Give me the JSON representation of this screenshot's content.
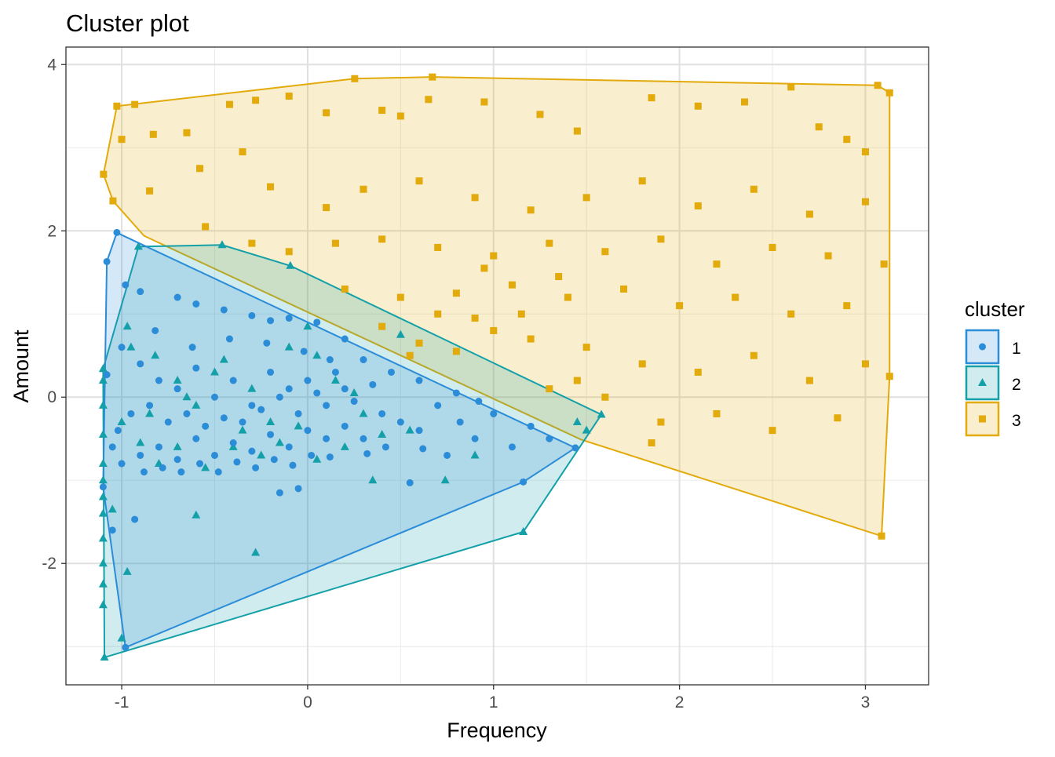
{
  "chart_data": {
    "type": "scatter",
    "title": "Cluster plot",
    "xlabel": "Frequency",
    "ylabel": "Amount",
    "xlim": [
      -1.3,
      3.34
    ],
    "ylim": [
      -3.46,
      4.21
    ],
    "x_ticks": [
      -1,
      0,
      1,
      2,
      3
    ],
    "x_tick_labels": [
      "-1",
      "0",
      "1",
      "2",
      "3"
    ],
    "y_ticks": [
      -2,
      0,
      2,
      4
    ],
    "y_tick_labels": [
      "-2",
      "0",
      "2",
      "4"
    ],
    "grid": true,
    "legend": {
      "title": "cluster",
      "placement": "right"
    },
    "series": [
      {
        "name": "1",
        "shape": "circle",
        "color": "#2B8CD8",
        "hull": [
          [
            -1.026,
            1.98
          ],
          [
            -1.08,
            1.63
          ],
          [
            -1.1,
            -1.08
          ],
          [
            -0.98,
            -3.01
          ],
          [
            1.16,
            -1.02
          ],
          [
            1.44,
            -0.61
          ],
          [
            -1.0,
            1.95
          ]
        ],
        "points": [
          [
            -1.026,
            1.98
          ],
          [
            -1.08,
            1.63
          ],
          [
            -0.98,
            -3.01
          ],
          [
            1.16,
            -1.02
          ],
          [
            1.44,
            -0.61
          ],
          [
            -1.05,
            -1.6
          ],
          [
            -0.93,
            -1.47
          ],
          [
            -1.1,
            -1.08
          ],
          [
            -0.98,
            1.35
          ],
          [
            -0.9,
            1.27
          ],
          [
            -0.7,
            1.2
          ],
          [
            -0.6,
            1.12
          ],
          [
            -0.45,
            1.05
          ],
          [
            -0.3,
            0.98
          ],
          [
            -0.2,
            0.92
          ],
          [
            -0.1,
            0.95
          ],
          [
            0.05,
            0.9
          ],
          [
            0.2,
            0.7
          ],
          [
            0.3,
            0.45
          ],
          [
            0.45,
            0.3
          ],
          [
            0.6,
            0.2
          ],
          [
            0.8,
            0.05
          ],
          [
            1.0,
            -0.2
          ],
          [
            1.2,
            -0.35
          ],
          [
            1.3,
            -0.5
          ],
          [
            -1.0,
            0.6
          ],
          [
            -0.9,
            0.4
          ],
          [
            -0.8,
            0.2
          ],
          [
            -0.7,
            0.1
          ],
          [
            -0.6,
            0.35
          ],
          [
            -0.5,
            0.0
          ],
          [
            -0.4,
            0.2
          ],
          [
            -0.3,
            -0.1
          ],
          [
            -0.2,
            0.3
          ],
          [
            -0.1,
            0.1
          ],
          [
            0.0,
            0.2
          ],
          [
            0.1,
            -0.1
          ],
          [
            0.2,
            0.1
          ],
          [
            0.4,
            -0.2
          ],
          [
            0.5,
            -0.3
          ],
          [
            0.6,
            -0.4
          ],
          [
            0.7,
            -0.1
          ],
          [
            0.9,
            -0.5
          ],
          [
            1.1,
            -0.6
          ],
          [
            -1.05,
            -0.6
          ],
          [
            -1.0,
            -0.8
          ],
          [
            -0.9,
            -0.7
          ],
          [
            -0.8,
            -0.6
          ],
          [
            -0.7,
            -0.75
          ],
          [
            -0.6,
            -0.5
          ],
          [
            -0.5,
            -0.7
          ],
          [
            -0.4,
            -0.55
          ],
          [
            -0.3,
            -0.65
          ],
          [
            -0.2,
            -0.45
          ],
          [
            -0.1,
            -0.6
          ],
          [
            0.0,
            -0.4
          ],
          [
            0.1,
            -0.5
          ],
          [
            0.2,
            -0.35
          ],
          [
            0.3,
            -0.5
          ],
          [
            -0.15,
            -1.15
          ],
          [
            -0.05,
            -1.1
          ],
          [
            0.55,
            -1.03
          ],
          [
            0.75,
            -0.7
          ],
          [
            -0.95,
            -0.2
          ],
          [
            -0.85,
            -0.1
          ],
          [
            -0.75,
            -0.3
          ],
          [
            -0.65,
            -0.2
          ],
          [
            -0.55,
            -0.35
          ],
          [
            -0.45,
            -0.25
          ],
          [
            -0.35,
            -0.3
          ],
          [
            -0.25,
            -0.15
          ],
          [
            -0.15,
            0.0
          ],
          [
            -0.05,
            -0.2
          ],
          [
            0.05,
            0.05
          ],
          [
            0.15,
            0.3
          ],
          [
            0.25,
            -0.05
          ],
          [
            0.35,
            0.15
          ],
          [
            -1.08,
            0.27
          ],
          [
            -1.02,
            -0.4
          ],
          [
            -0.88,
            -0.9
          ],
          [
            -0.78,
            -0.85
          ],
          [
            -0.68,
            -0.9
          ],
          [
            -0.58,
            -0.8
          ],
          [
            -0.48,
            -0.9
          ],
          [
            -0.38,
            -0.78
          ],
          [
            -0.28,
            -0.85
          ],
          [
            -0.18,
            -0.75
          ],
          [
            -0.08,
            -0.82
          ],
          [
            0.02,
            -0.7
          ],
          [
            0.12,
            -0.72
          ],
          [
            0.32,
            -0.68
          ],
          [
            0.42,
            -0.6
          ],
          [
            0.62,
            -0.62
          ],
          [
            0.82,
            -0.3
          ],
          [
            0.92,
            -0.05
          ],
          [
            0.12,
            0.45
          ],
          [
            -0.02,
            0.55
          ],
          [
            -0.22,
            0.65
          ],
          [
            -0.42,
            0.7
          ],
          [
            -0.62,
            0.6
          ],
          [
            -0.82,
            0.8
          ]
        ]
      },
      {
        "name": "2",
        "shape": "triangle",
        "color": "#14A0A8",
        "hull": [
          [
            -1.093,
            -3.13
          ],
          [
            1.16,
            -1.62
          ],
          [
            1.58,
            -0.21
          ],
          [
            -0.093,
            1.58
          ],
          [
            -0.46,
            1.83
          ],
          [
            -0.91,
            1.81
          ],
          [
            -1.1,
            0.34
          ]
        ],
        "points": [
          [
            -1.093,
            -3.13
          ],
          [
            1.16,
            -1.62
          ],
          [
            1.58,
            -0.21
          ],
          [
            -0.093,
            1.58
          ],
          [
            -0.46,
            1.83
          ],
          [
            -0.91,
            1.81
          ],
          [
            -1.1,
            0.34
          ],
          [
            -1.1,
            -2.5
          ],
          [
            -1.1,
            -2.25
          ],
          [
            -1.1,
            -2.0
          ],
          [
            -1.1,
            -1.7
          ],
          [
            -1.1,
            -1.4
          ],
          [
            -1.1,
            -1.2
          ],
          [
            -1.1,
            -1.0
          ],
          [
            -1.1,
            -0.8
          ],
          [
            -1.1,
            -0.45
          ],
          [
            -1.1,
            -0.1
          ],
          [
            -1.1,
            0.2
          ],
          [
            -1.05,
            -1.35
          ],
          [
            -0.97,
            -2.1
          ],
          [
            -1.0,
            -2.9
          ],
          [
            -0.6,
            -1.42
          ],
          [
            -0.28,
            -1.87
          ],
          [
            0.35,
            -1.0
          ],
          [
            0.74,
            -1.0
          ],
          [
            -0.97,
            0.85
          ],
          [
            -0.95,
            0.6
          ],
          [
            -0.82,
            0.5
          ],
          [
            -0.7,
            0.2
          ],
          [
            -0.6,
            -0.1
          ],
          [
            -0.5,
            0.3
          ],
          [
            -0.45,
            0.45
          ],
          [
            -0.3,
            0.1
          ],
          [
            -0.2,
            -0.3
          ],
          [
            -0.1,
            0.6
          ],
          [
            0.0,
            0.85
          ],
          [
            0.05,
            0.5
          ],
          [
            0.15,
            0.2
          ],
          [
            0.3,
            -0.2
          ],
          [
            0.5,
            0.75
          ],
          [
            0.55,
            -0.4
          ],
          [
            0.9,
            -0.7
          ],
          [
            1.45,
            -0.3
          ],
          [
            1.5,
            -0.4
          ],
          [
            -0.9,
            -0.55
          ],
          [
            -0.8,
            -0.8
          ],
          [
            -0.7,
            -0.6
          ],
          [
            -0.55,
            -0.85
          ],
          [
            -0.4,
            -0.6
          ],
          [
            -0.25,
            -0.7
          ],
          [
            -0.15,
            -0.55
          ],
          [
            0.05,
            -0.75
          ],
          [
            0.2,
            -0.6
          ],
          [
            0.4,
            -0.45
          ],
          [
            -1.0,
            -0.3
          ],
          [
            -0.85,
            -0.2
          ],
          [
            -0.65,
            0.0
          ],
          [
            -0.35,
            -0.4
          ],
          [
            -0.05,
            -0.35
          ],
          [
            0.25,
            0.05
          ]
        ]
      },
      {
        "name": "3",
        "shape": "square",
        "color": "#E2AA0A",
        "hull": [
          [
            -1.098,
            2.68
          ],
          [
            -1.047,
            2.36
          ],
          [
            -0.88,
            1.94
          ],
          [
            1.47,
            -0.51
          ],
          [
            3.087,
            -1.67
          ],
          [
            3.13,
            0.25
          ],
          [
            3.13,
            3.66
          ],
          [
            3.066,
            3.75
          ],
          [
            0.671,
            3.85
          ],
          [
            0.253,
            3.83
          ],
          [
            -1.026,
            3.5
          ]
        ],
        "points": [
          [
            -1.098,
            2.68
          ],
          [
            -1.047,
            2.36
          ],
          [
            -1.026,
            3.5
          ],
          [
            0.253,
            3.83
          ],
          [
            0.671,
            3.85
          ],
          [
            3.066,
            3.75
          ],
          [
            3.13,
            3.66
          ],
          [
            3.13,
            0.25
          ],
          [
            3.087,
            -1.67
          ],
          [
            -0.93,
            3.52
          ],
          [
            -1.0,
            3.1
          ],
          [
            -0.83,
            3.16
          ],
          [
            -0.65,
            3.18
          ],
          [
            -0.58,
            2.75
          ],
          [
            -0.85,
            2.48
          ],
          [
            -0.42,
            3.52
          ],
          [
            -0.28,
            3.57
          ],
          [
            -0.1,
            3.62
          ],
          [
            0.1,
            3.42
          ],
          [
            0.4,
            3.45
          ],
          [
            0.5,
            3.38
          ],
          [
            0.65,
            3.58
          ],
          [
            0.95,
            3.55
          ],
          [
            1.25,
            3.4
          ],
          [
            1.45,
            3.2
          ],
          [
            1.85,
            3.6
          ],
          [
            2.1,
            3.5
          ],
          [
            2.35,
            3.55
          ],
          [
            2.6,
            3.73
          ],
          [
            2.75,
            3.25
          ],
          [
            2.9,
            3.1
          ],
          [
            3.0,
            2.95
          ],
          [
            -0.35,
            2.95
          ],
          [
            -0.2,
            2.53
          ],
          [
            0.1,
            2.28
          ],
          [
            0.3,
            2.5
          ],
          [
            0.6,
            2.6
          ],
          [
            0.9,
            2.4
          ],
          [
            1.2,
            2.25
          ],
          [
            1.5,
            2.4
          ],
          [
            1.8,
            2.6
          ],
          [
            2.1,
            2.3
          ],
          [
            2.4,
            2.5
          ],
          [
            2.7,
            2.2
          ],
          [
            3.0,
            2.35
          ],
          [
            -0.55,
            2.05
          ],
          [
            -0.3,
            1.85
          ],
          [
            -0.1,
            1.75
          ],
          [
            0.15,
            1.85
          ],
          [
            0.4,
            1.9
          ],
          [
            0.7,
            1.8
          ],
          [
            1.0,
            1.7
          ],
          [
            1.3,
            1.85
          ],
          [
            1.6,
            1.75
          ],
          [
            1.9,
            1.9
          ],
          [
            2.2,
            1.6
          ],
          [
            2.5,
            1.8
          ],
          [
            2.8,
            1.7
          ],
          [
            3.1,
            1.6
          ],
          [
            0.2,
            1.3
          ],
          [
            0.5,
            1.2
          ],
          [
            0.8,
            1.25
          ],
          [
            1.1,
            1.35
          ],
          [
            1.4,
            1.2
          ],
          [
            1.7,
            1.3
          ],
          [
            2.0,
            1.1
          ],
          [
            2.3,
            1.2
          ],
          [
            2.6,
            1.0
          ],
          [
            2.9,
            1.1
          ],
          [
            0.4,
            0.85
          ],
          [
            0.6,
            0.65
          ],
          [
            0.8,
            0.55
          ],
          [
            1.0,
            0.8
          ],
          [
            1.2,
            0.7
          ],
          [
            1.5,
            0.6
          ],
          [
            1.8,
            0.4
          ],
          [
            2.1,
            0.3
          ],
          [
            2.4,
            0.5
          ],
          [
            2.7,
            0.2
          ],
          [
            3.0,
            0.4
          ],
          [
            1.3,
            0.1
          ],
          [
            1.6,
            0.0
          ],
          [
            1.9,
            -0.3
          ],
          [
            2.2,
            -0.2
          ],
          [
            2.5,
            -0.4
          ],
          [
            2.85,
            -0.25
          ],
          [
            1.85,
            -0.55
          ],
          [
            1.45,
            0.2
          ],
          [
            0.9,
            0.95
          ],
          [
            0.55,
            0.5
          ],
          [
            0.7,
            1.0
          ],
          [
            1.15,
            1.0
          ],
          [
            1.35,
            1.45
          ],
          [
            0.95,
            1.55
          ]
        ]
      }
    ]
  }
}
